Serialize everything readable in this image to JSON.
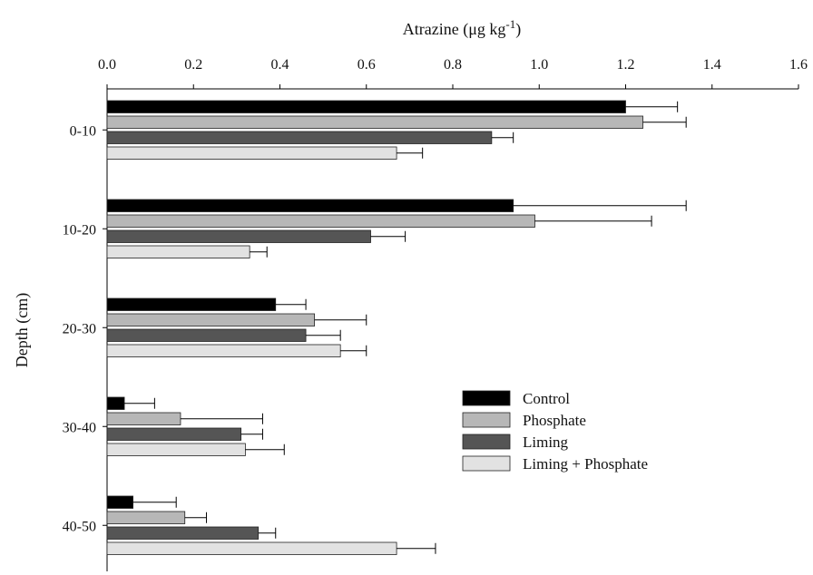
{
  "chart_data": {
    "type": "bar",
    "orientation": "horizontal",
    "title": "",
    "xlabel_main": "Atrazine (μg kg",
    "xlabel_sup": "-1",
    "xlabel_close": ")",
    "ylabel": "Depth (cm)",
    "xlim": [
      0,
      1.6
    ],
    "x_ticks": [
      "0.0",
      "0.2",
      "0.4",
      "0.6",
      "0.8",
      "1.0",
      "1.2",
      "1.4",
      "1.6"
    ],
    "x_tick_values": [
      0,
      0.2,
      0.4,
      0.6,
      0.8,
      1.0,
      1.2,
      1.4,
      1.6
    ],
    "categories": [
      "0-10",
      "10-20",
      "20-30",
      "30-40",
      "40-50"
    ],
    "legend_position": "right",
    "series": [
      {
        "name": "Control",
        "color": "#000000",
        "values": [
          1.2,
          0.94,
          0.39,
          0.04,
          0.06
        ],
        "errors": [
          0.12,
          0.4,
          0.07,
          0.07,
          0.1
        ]
      },
      {
        "name": "Phosphate",
        "color": "#b7b7b7",
        "values": [
          1.24,
          0.99,
          0.48,
          0.17,
          0.18
        ],
        "errors": [
          0.1,
          0.27,
          0.12,
          0.19,
          0.05
        ]
      },
      {
        "name": "Liming",
        "color": "#555555",
        "values": [
          0.89,
          0.61,
          0.46,
          0.31,
          0.35
        ],
        "errors": [
          0.05,
          0.08,
          0.08,
          0.05,
          0.04
        ]
      },
      {
        "name": "Liming + Phosphate",
        "color": "#e2e2e2",
        "values": [
          0.67,
          0.33,
          0.54,
          0.32,
          0.67
        ],
        "errors": [
          0.06,
          0.04,
          0.06,
          0.09,
          0.09
        ]
      }
    ]
  }
}
